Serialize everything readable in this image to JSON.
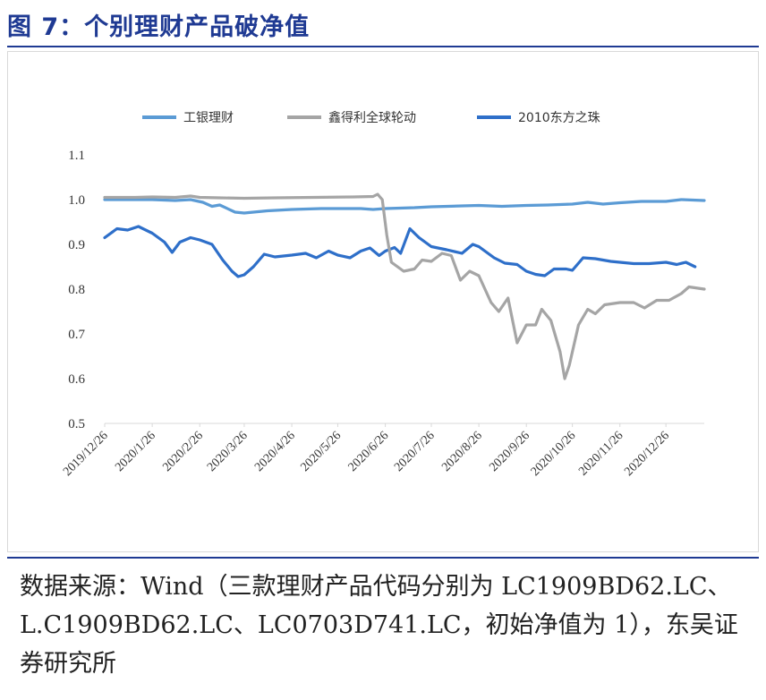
{
  "figure": {
    "title": "图 7：个别理财产品破净值",
    "source_text": "数据来源：Wind（三款理财产品代码分别为 LC1909BD62.LC、L.C1909BD62.LC、LC0703D741.LC，初始净值为 1），东吴证券研究所"
  },
  "colors": {
    "title": "#1f3a93",
    "series_gongyin": "#5b9bd5",
    "series_xinhe": "#a5a5a5",
    "series_2010": "#2e6fc9"
  },
  "chart_data": {
    "type": "line",
    "title": "",
    "xlabel": "",
    "ylabel": "",
    "ylim": [
      0.5,
      1.1
    ],
    "yticks": [
      "0.5",
      "0.6",
      "0.7",
      "0.8",
      "0.9",
      "1.0",
      "1.1"
    ],
    "xlim": [
      "2019-12-26",
      "2021-01-20"
    ],
    "x_tick_labels": [
      "2019/12/26",
      "2020/1/26",
      "2020/2/26",
      "2020/3/26",
      "2020/4/26",
      "2020/5/26",
      "2020/6/26",
      "2020/7/26",
      "2020/8/26",
      "2020/9/26",
      "2020/10/26",
      "2020/11/26",
      "2020/12/26"
    ],
    "x_tick_dates": [
      "2019-12-26",
      "2020-01-26",
      "2020-02-26",
      "2020-03-26",
      "2020-04-26",
      "2020-05-26",
      "2020-06-26",
      "2020-07-26",
      "2020-08-26",
      "2020-09-26",
      "2020-10-26",
      "2020-11-26",
      "2020-12-26"
    ],
    "legend_position": "top",
    "grid": false,
    "series": [
      {
        "name": "工银理财",
        "color": "#5b9bd5",
        "points": [
          [
            "2019-12-26",
            1.0
          ],
          [
            "2020-01-10",
            1.0
          ],
          [
            "2020-01-26",
            1.0
          ],
          [
            "2020-02-10",
            0.998
          ],
          [
            "2020-02-20",
            1.0
          ],
          [
            "2020-02-28",
            0.994
          ],
          [
            "2020-03-05",
            0.985
          ],
          [
            "2020-03-10",
            0.988
          ],
          [
            "2020-03-20",
            0.972
          ],
          [
            "2020-03-26",
            0.97
          ],
          [
            "2020-04-10",
            0.975
          ],
          [
            "2020-04-26",
            0.978
          ],
          [
            "2020-05-15",
            0.98
          ],
          [
            "2020-06-10",
            0.98
          ],
          [
            "2020-06-18",
            0.978
          ],
          [
            "2020-06-26",
            0.98
          ],
          [
            "2020-07-15",
            0.982
          ],
          [
            "2020-07-26",
            0.984
          ],
          [
            "2020-08-15",
            0.986
          ],
          [
            "2020-08-26",
            0.987
          ],
          [
            "2020-09-10",
            0.985
          ],
          [
            "2020-09-26",
            0.987
          ],
          [
            "2020-10-10",
            0.988
          ],
          [
            "2020-10-26",
            0.99
          ],
          [
            "2020-11-05",
            0.994
          ],
          [
            "2020-11-15",
            0.99
          ],
          [
            "2020-11-26",
            0.993
          ],
          [
            "2020-12-10",
            0.996
          ],
          [
            "2020-12-26",
            0.996
          ],
          [
            "2021-01-05",
            1.0
          ],
          [
            "2021-01-20",
            0.998
          ]
        ]
      },
      {
        "name": "鑫得利全球轮动",
        "color": "#a5a5a5",
        "points": [
          [
            "2019-12-26",
            1.005
          ],
          [
            "2020-01-15",
            1.005
          ],
          [
            "2020-01-26",
            1.006
          ],
          [
            "2020-02-10",
            1.005
          ],
          [
            "2020-02-20",
            1.008
          ],
          [
            "2020-02-26",
            1.005
          ],
          [
            "2020-03-10",
            1.004
          ],
          [
            "2020-03-26",
            1.003
          ],
          [
            "2020-04-15",
            1.004
          ],
          [
            "2020-05-10",
            1.005
          ],
          [
            "2020-06-05",
            1.006
          ],
          [
            "2020-06-18",
            1.007
          ],
          [
            "2020-06-21",
            1.012
          ],
          [
            "2020-06-24",
            1.0
          ],
          [
            "2020-06-27",
            0.92
          ],
          [
            "2020-06-30",
            0.86
          ],
          [
            "2020-07-08",
            0.84
          ],
          [
            "2020-07-15",
            0.845
          ],
          [
            "2020-07-20",
            0.865
          ],
          [
            "2020-07-26",
            0.862
          ],
          [
            "2020-08-02",
            0.88
          ],
          [
            "2020-08-08",
            0.875
          ],
          [
            "2020-08-14",
            0.82
          ],
          [
            "2020-08-20",
            0.84
          ],
          [
            "2020-08-26",
            0.83
          ],
          [
            "2020-09-03",
            0.77
          ],
          [
            "2020-09-08",
            0.75
          ],
          [
            "2020-09-14",
            0.78
          ],
          [
            "2020-09-20",
            0.68
          ],
          [
            "2020-09-26",
            0.72
          ],
          [
            "2020-10-02",
            0.72
          ],
          [
            "2020-10-06",
            0.755
          ],
          [
            "2020-10-12",
            0.73
          ],
          [
            "2020-10-18",
            0.66
          ],
          [
            "2020-10-21",
            0.6
          ],
          [
            "2020-10-24",
            0.63
          ],
          [
            "2020-10-30",
            0.72
          ],
          [
            "2020-11-05",
            0.755
          ],
          [
            "2020-11-10",
            0.745
          ],
          [
            "2020-11-16",
            0.765
          ],
          [
            "2020-11-26",
            0.77
          ],
          [
            "2020-12-05",
            0.77
          ],
          [
            "2020-12-12",
            0.758
          ],
          [
            "2020-12-20",
            0.775
          ],
          [
            "2020-12-28",
            0.775
          ],
          [
            "2021-01-05",
            0.79
          ],
          [
            "2021-01-10",
            0.805
          ],
          [
            "2021-01-20",
            0.8
          ]
        ]
      },
      {
        "name": "2010东方之珠",
        "color": "#2e6fc9",
        "points": [
          [
            "2019-12-26",
            0.915
          ],
          [
            "2020-01-03",
            0.935
          ],
          [
            "2020-01-10",
            0.932
          ],
          [
            "2020-01-17",
            0.94
          ],
          [
            "2020-01-26",
            0.925
          ],
          [
            "2020-02-03",
            0.905
          ],
          [
            "2020-02-08",
            0.882
          ],
          [
            "2020-02-13",
            0.905
          ],
          [
            "2020-02-20",
            0.915
          ],
          [
            "2020-02-26",
            0.91
          ],
          [
            "2020-03-05",
            0.9
          ],
          [
            "2020-03-12",
            0.865
          ],
          [
            "2020-03-18",
            0.84
          ],
          [
            "2020-03-22",
            0.828
          ],
          [
            "2020-03-26",
            0.832
          ],
          [
            "2020-04-01",
            0.85
          ],
          [
            "2020-04-08",
            0.878
          ],
          [
            "2020-04-15",
            0.872
          ],
          [
            "2020-04-26",
            0.876
          ],
          [
            "2020-05-05",
            0.88
          ],
          [
            "2020-05-12",
            0.87
          ],
          [
            "2020-05-20",
            0.885
          ],
          [
            "2020-05-26",
            0.876
          ],
          [
            "2020-06-03",
            0.87
          ],
          [
            "2020-06-10",
            0.885
          ],
          [
            "2020-06-16",
            0.892
          ],
          [
            "2020-06-22",
            0.875
          ],
          [
            "2020-06-26",
            0.885
          ],
          [
            "2020-07-02",
            0.893
          ],
          [
            "2020-07-06",
            0.88
          ],
          [
            "2020-07-12",
            0.935
          ],
          [
            "2020-07-18",
            0.915
          ],
          [
            "2020-07-26",
            0.895
          ],
          [
            "2020-08-05",
            0.888
          ],
          [
            "2020-08-15",
            0.88
          ],
          [
            "2020-08-22",
            0.9
          ],
          [
            "2020-08-26",
            0.895
          ],
          [
            "2020-09-05",
            0.87
          ],
          [
            "2020-09-12",
            0.858
          ],
          [
            "2020-09-20",
            0.855
          ],
          [
            "2020-09-26",
            0.84
          ],
          [
            "2020-10-02",
            0.833
          ],
          [
            "2020-10-08",
            0.83
          ],
          [
            "2020-10-14",
            0.845
          ],
          [
            "2020-10-22",
            0.845
          ],
          [
            "2020-10-26",
            0.842
          ],
          [
            "2020-11-02",
            0.87
          ],
          [
            "2020-11-10",
            0.868
          ],
          [
            "2020-11-20",
            0.862
          ],
          [
            "2020-11-26",
            0.86
          ],
          [
            "2020-12-05",
            0.857
          ],
          [
            "2020-12-15",
            0.857
          ],
          [
            "2020-12-26",
            0.86
          ],
          [
            "2021-01-02",
            0.855
          ],
          [
            "2021-01-08",
            0.86
          ],
          [
            "2021-01-14",
            0.85
          ]
        ]
      }
    ]
  }
}
